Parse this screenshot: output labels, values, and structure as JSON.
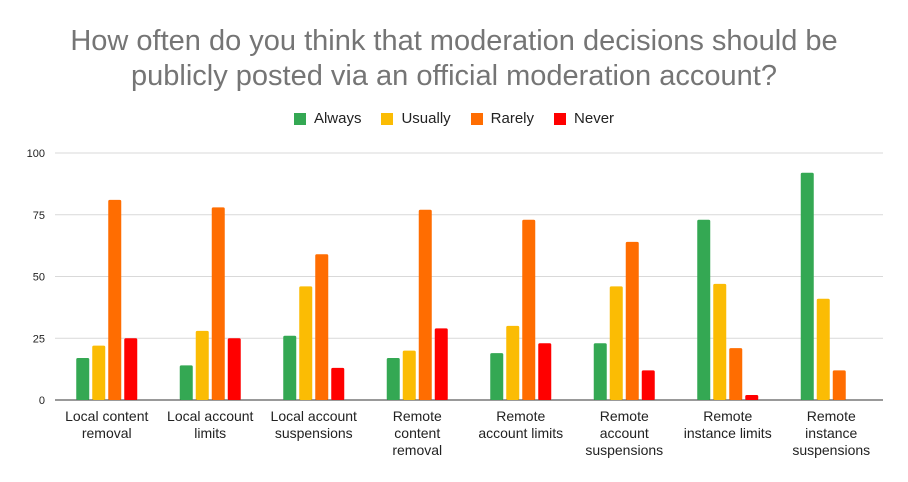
{
  "chart_data": {
    "type": "bar",
    "title_lines": [
      "How often do you think that moderation decisions should be",
      "publicly posted via an official moderation account?"
    ],
    "categories": [
      [
        "Local content",
        "removal"
      ],
      [
        "Local account",
        "limits"
      ],
      [
        "Local account",
        "suspensions"
      ],
      [
        "Remote",
        "content",
        "removal"
      ],
      [
        "Remote",
        "account limits"
      ],
      [
        "Remote",
        "account",
        "suspensions"
      ],
      [
        "Remote",
        "instance limits"
      ],
      [
        "Remote",
        "instance",
        "suspensions"
      ]
    ],
    "series": [
      {
        "name": "Always",
        "color": "#34a853",
        "values": [
          17,
          14,
          26,
          17,
          19,
          23,
          73,
          92
        ]
      },
      {
        "name": "Usually",
        "color": "#fbbc04",
        "values": [
          22,
          28,
          46,
          20,
          30,
          46,
          47,
          41
        ]
      },
      {
        "name": "Rarely",
        "color": "#ff6d01",
        "values": [
          81,
          78,
          59,
          77,
          73,
          64,
          21,
          12
        ]
      },
      {
        "name": "Never",
        "color": "#ff0000",
        "values": [
          25,
          25,
          13,
          29,
          23,
          12,
          2,
          0
        ]
      }
    ],
    "yticks": [
      0,
      25,
      50,
      75,
      100
    ],
    "ylim": [
      0,
      100
    ],
    "grid": true,
    "legend_position": "top"
  }
}
